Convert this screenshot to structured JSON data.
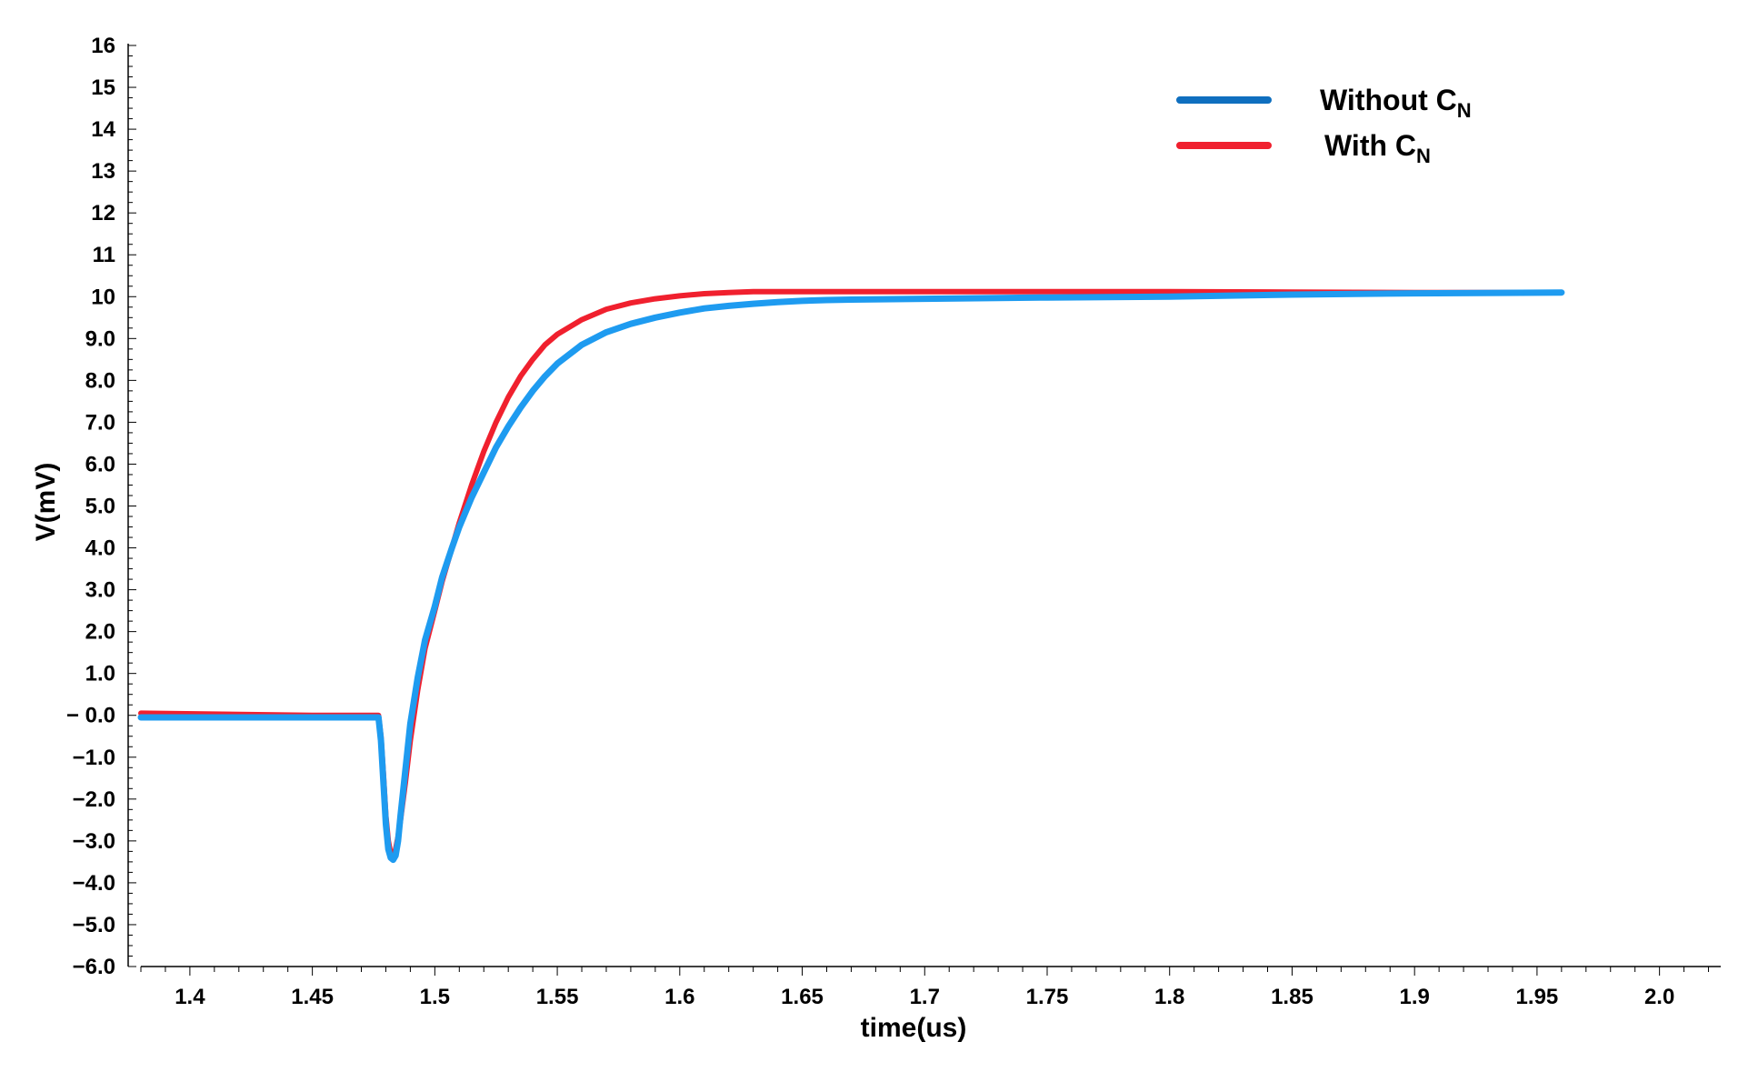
{
  "chart_data": {
    "type": "line",
    "xlabel": "time(us)",
    "ylabel": "V(mV)",
    "xlim": [
      1.38,
      2.025
    ],
    "ylim": [
      -6.0,
      16.0
    ],
    "x_ticks": [
      "1.4",
      "1.45",
      "1.5",
      "1.55",
      "1.6",
      "1.65",
      "1.7",
      "1.75",
      "1.8",
      "1.85",
      "1.9",
      "1.95",
      "2.0"
    ],
    "y_ticks": [
      "16",
      "15",
      "14",
      "13",
      "12",
      "11",
      "10",
      "9.0",
      "8.0",
      "7.0",
      "6.0",
      "5.0",
      "4.0",
      "3.0",
      "2.0",
      "1.0",
      "− 0.0",
      "−1.0",
      "−2.0",
      "−3.0",
      "−4.0",
      "−5.0",
      "−6.0"
    ],
    "grid": false,
    "legend_position": "top-right",
    "series": [
      {
        "name": "Without C",
        "name_sub": "N",
        "color": "#1E9BF0",
        "legend_color": "#0F6FBF",
        "x": [
          1.38,
          1.45,
          1.477,
          1.478,
          1.479,
          1.48,
          1.481,
          1.482,
          1.483,
          1.484,
          1.485,
          1.486,
          1.488,
          1.49,
          1.493,
          1.496,
          1.5,
          1.503,
          1.507,
          1.51,
          1.515,
          1.52,
          1.525,
          1.53,
          1.535,
          1.54,
          1.545,
          1.55,
          1.56,
          1.57,
          1.58,
          1.59,
          1.6,
          1.61,
          1.62,
          1.63,
          1.64,
          1.65,
          1.66,
          1.67,
          1.7,
          1.75,
          1.8,
          1.85,
          1.9,
          1.96
        ],
        "y": [
          -0.05,
          -0.05,
          -0.05,
          -0.6,
          -1.6,
          -2.6,
          -3.2,
          -3.4,
          -3.45,
          -3.35,
          -3.0,
          -2.4,
          -1.3,
          -0.2,
          0.9,
          1.8,
          2.6,
          3.3,
          4.0,
          4.5,
          5.2,
          5.8,
          6.4,
          6.9,
          7.35,
          7.75,
          8.1,
          8.4,
          8.85,
          9.15,
          9.35,
          9.5,
          9.62,
          9.72,
          9.78,
          9.83,
          9.87,
          9.9,
          9.92,
          9.93,
          9.95,
          9.98,
          10.0,
          10.05,
          10.08,
          10.1
        ]
      },
      {
        "name": "With C",
        "name_sub": "N",
        "color": "#F0202E",
        "legend_color": "#F0202E",
        "x": [
          1.38,
          1.45,
          1.477,
          1.478,
          1.479,
          1.48,
          1.481,
          1.482,
          1.483,
          1.484,
          1.485,
          1.486,
          1.488,
          1.49,
          1.493,
          1.496,
          1.5,
          1.503,
          1.507,
          1.51,
          1.515,
          1.52,
          1.525,
          1.53,
          1.535,
          1.54,
          1.545,
          1.55,
          1.56,
          1.57,
          1.58,
          1.59,
          1.6,
          1.61,
          1.62,
          1.63,
          1.64,
          1.65,
          1.7,
          1.75,
          1.8,
          1.85,
          1.9,
          1.96
        ],
        "y": [
          0.05,
          0.0,
          0.0,
          -0.5,
          -1.4,
          -2.4,
          -3.0,
          -3.3,
          -3.35,
          -3.2,
          -2.9,
          -2.5,
          -1.6,
          -0.6,
          0.6,
          1.6,
          2.5,
          3.2,
          4.0,
          4.6,
          5.5,
          6.3,
          7.0,
          7.6,
          8.1,
          8.5,
          8.85,
          9.1,
          9.45,
          9.7,
          9.85,
          9.95,
          10.02,
          10.07,
          10.1,
          10.12,
          10.12,
          10.12,
          10.12,
          10.12,
          10.12,
          10.11,
          10.1,
          10.1
        ]
      }
    ]
  }
}
